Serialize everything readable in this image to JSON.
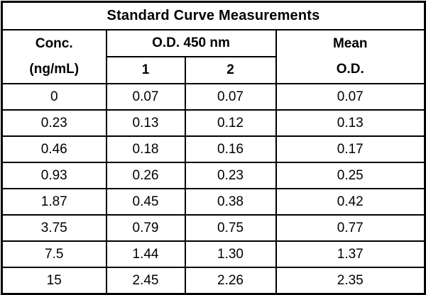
{
  "chart_data": {
    "type": "table",
    "title": "Standard Curve Measurements",
    "columns": [
      "Conc. (ng/mL)",
      "O.D. 450 nm 1",
      "O.D. 450 nm 2",
      "Mean O.D."
    ],
    "x": [
      0,
      0.23,
      0.46,
      0.93,
      1.87,
      3.75,
      7.5,
      15
    ],
    "xlabel": "Conc. (ng/mL)",
    "ylabel": "O.D. 450 nm",
    "series": [
      {
        "name": "O.D. 450 nm replicate 1",
        "values": [
          0.07,
          0.13,
          0.18,
          0.26,
          0.45,
          0.79,
          1.44,
          2.45
        ]
      },
      {
        "name": "O.D. 450 nm replicate 2",
        "values": [
          0.07,
          0.12,
          0.16,
          0.23,
          0.38,
          0.75,
          1.3,
          2.26
        ]
      },
      {
        "name": "Mean O.D.",
        "values": [
          0.07,
          0.13,
          0.17,
          0.25,
          0.42,
          0.77,
          1.37,
          2.35
        ]
      }
    ]
  },
  "table": {
    "title": "Standard Curve Measurements",
    "headers": {
      "conc_line1": "Conc.",
      "conc_line2": "(ng/mL)",
      "od_group": "O.D. 450 nm",
      "od_col1": "1",
      "od_col2": "2",
      "mean_line1": "Mean",
      "mean_line2": "O.D."
    },
    "rows": [
      {
        "conc": "0",
        "od1": "0.07",
        "od2": "0.07",
        "mean": "0.07"
      },
      {
        "conc": "0.23",
        "od1": "0.13",
        "od2": "0.12",
        "mean": "0.13"
      },
      {
        "conc": "0.46",
        "od1": "0.18",
        "od2": "0.16",
        "mean": "0.17"
      },
      {
        "conc": "0.93",
        "od1": "0.26",
        "od2": "0.23",
        "mean": "0.25"
      },
      {
        "conc": "1.87",
        "od1": "0.45",
        "od2": "0.38",
        "mean": "0.42"
      },
      {
        "conc": "3.75",
        "od1": "0.79",
        "od2": "0.75",
        "mean": "0.77"
      },
      {
        "conc": "7.5",
        "od1": "1.44",
        "od2": "1.30",
        "mean": "1.37"
      },
      {
        "conc": "15",
        "od1": "2.45",
        "od2": "2.26",
        "mean": "2.35"
      }
    ]
  },
  "colors": {
    "border": "#000000",
    "text": "#000000",
    "background": "#ffffff"
  }
}
